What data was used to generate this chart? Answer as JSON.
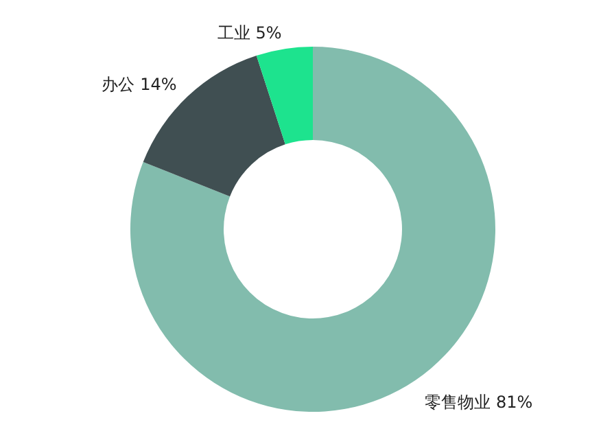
{
  "chart_data": {
    "type": "donut",
    "categories": [
      "零售物业",
      "办公",
      "工业"
    ],
    "values": [
      81,
      14,
      5
    ],
    "value_labels": [
      "81%",
      "14%",
      "5%"
    ],
    "colors": [
      "#82bcad",
      "#404f52",
      "#1de38e"
    ]
  }
}
